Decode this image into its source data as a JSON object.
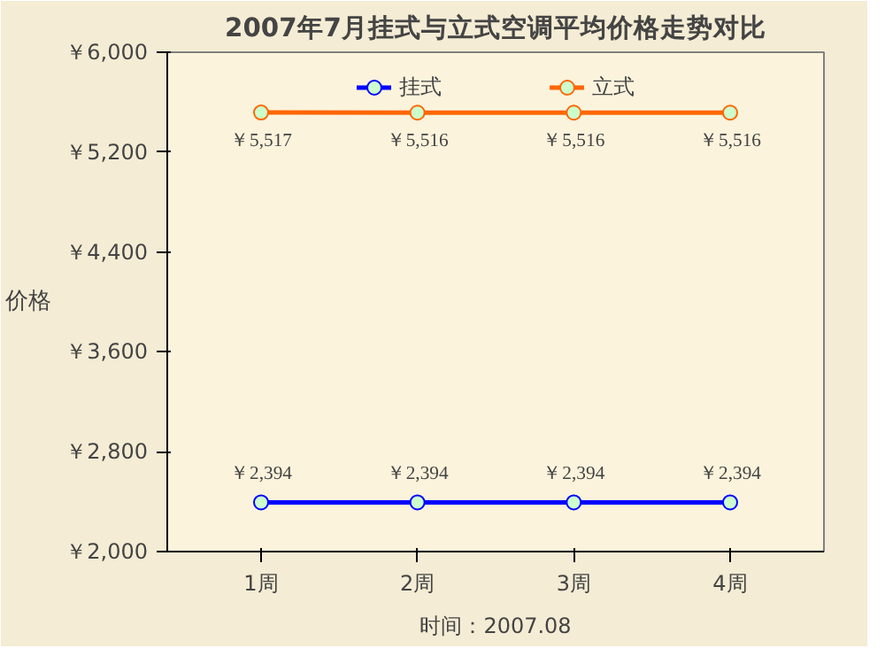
{
  "chart_data": {
    "type": "line",
    "title": "2007年7月挂式与立式空调平均价格走势对比",
    "ylabel": "价格",
    "categories": [
      "1周",
      "2周",
      "3周",
      "4周"
    ],
    "series": [
      {
        "name": "挂式",
        "color": "#0000ff",
        "values": [
          2394,
          2394,
          2394,
          2394
        ],
        "value_labels": [
          "￥2,394",
          "￥2,394",
          "￥2,394",
          "￥2,394"
        ]
      },
      {
        "name": "立式",
        "color": "#ff6600",
        "values": [
          5517,
          5516,
          5516,
          5516
        ],
        "value_labels": [
          "￥5,517",
          "￥5,516",
          "￥5,516",
          "￥5,516"
        ]
      }
    ],
    "ylim": [
      2000,
      6000
    ],
    "yticks": [
      {
        "value": 2000,
        "label": "￥2,000"
      },
      {
        "value": 2800,
        "label": "￥2,800"
      },
      {
        "value": 3600,
        "label": "￥3,600"
      },
      {
        "value": 4400,
        "label": "￥4,400"
      },
      {
        "value": 5200,
        "label": "￥5,200"
      },
      {
        "value": 6000,
        "label": "￥6,000"
      }
    ],
    "grid": false,
    "legend": "top",
    "marker": "circle",
    "line_style": "solid",
    "annotations": [
      "时间：2007.08"
    ]
  }
}
